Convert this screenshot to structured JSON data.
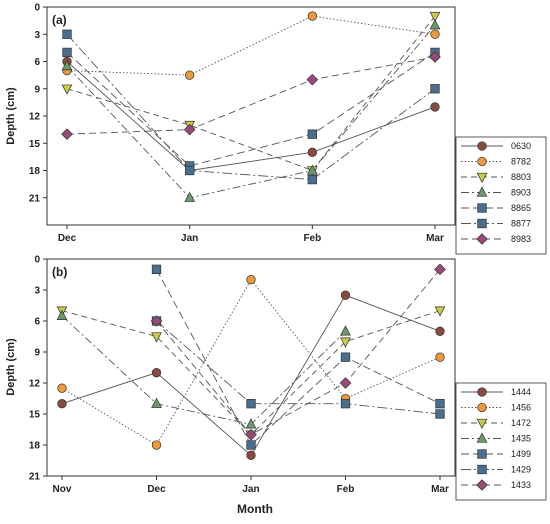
{
  "shared_xlabel": "Month",
  "marker_colors": {
    "circle_dark": "#8a4a3e",
    "circle_orange": "#ee9a3a",
    "triangle_down": "#c8c84a",
    "triangle_up": "#6a9a6a",
    "square": "#4a6e8e",
    "diamond": "#9a4a7a"
  },
  "chart_data": [
    {
      "panel_label": "(a)",
      "type": "line",
      "ylabel": "Depth (cm)",
      "categories": [
        "Dec",
        "Jan",
        "Feb",
        "Mar"
      ],
      "y_ticks": [
        "0",
        "3",
        "6",
        "9",
        "12",
        "15",
        "18",
        "21"
      ],
      "ylim": [
        0,
        24
      ],
      "y_inverted": true,
      "legend_position": "right",
      "series": [
        {
          "name": "0630",
          "values": [
            6,
            18,
            16,
            11
          ],
          "marker": "circle",
          "color": "#8a4a3e",
          "dash": ""
        },
        {
          "name": "8782",
          "values": [
            7,
            7.5,
            1,
            3
          ],
          "marker": "circle",
          "color": "#ee9a3a",
          "dash": "1.5,2"
        },
        {
          "name": "8803",
          "values": [
            9,
            13,
            18,
            1
          ],
          "marker": "triangle-down",
          "color": "#c8c84a",
          "dash": "6,4"
        },
        {
          "name": "8903",
          "values": [
            6.5,
            21,
            18,
            2
          ],
          "marker": "triangle-up",
          "color": "#6a9a6a",
          "dash": "8,3,2,3"
        },
        {
          "name": "8865",
          "values": [
            5,
            17.5,
            14,
            5
          ],
          "marker": "square",
          "color": "#4a6e8e",
          "dash": "8,4"
        },
        {
          "name": "8877",
          "values": [
            3,
            18,
            19,
            9
          ],
          "marker": "square",
          "color": "#4a6e8e",
          "dash": "10,3,2,3"
        },
        {
          "name": "8983",
          "values": [
            14,
            13.5,
            8,
            5.5
          ],
          "marker": "diamond",
          "color": "#9a4a7a",
          "dash": "7,4"
        }
      ]
    },
    {
      "panel_label": "(b)",
      "type": "line",
      "ylabel": "Depth (cm)",
      "categories": [
        "Nov",
        "Dec",
        "Jan",
        "Feb",
        "Mar"
      ],
      "y_ticks": [
        "0",
        "3",
        "6",
        "9",
        "12",
        "15",
        "18",
        "21"
      ],
      "ylim": [
        0,
        21
      ],
      "y_inverted": true,
      "legend_position": "right",
      "series": [
        {
          "name": "1444",
          "values": [
            14,
            11,
            19,
            3.5,
            7
          ],
          "marker": "circle",
          "color": "#8a4a3e",
          "dash": ""
        },
        {
          "name": "1456",
          "values": [
            12.5,
            18,
            2,
            13.5,
            9.5
          ],
          "marker": "circle",
          "color": "#ee9a3a",
          "dash": "1.5,2"
        },
        {
          "name": "1472",
          "values": [
            5,
            7.5,
            17,
            8,
            5
          ],
          "marker": "triangle-down",
          "color": "#c8c84a",
          "dash": "6,4"
        },
        {
          "name": "1435",
          "values": [
            5.5,
            14,
            16,
            7,
            null
          ],
          "marker": "triangle-up",
          "color": "#6a9a6a",
          "dash": "8,3,2,3"
        },
        {
          "name": "1499",
          "values": [
            null,
            1,
            18,
            9.5,
            14
          ],
          "marker": "square",
          "color": "#4a6e8e",
          "dash": "8,4"
        },
        {
          "name": "1429",
          "values": [
            null,
            6,
            14,
            14,
            15
          ],
          "marker": "square",
          "color": "#4a6e8e",
          "dash": "10,3,2,3"
        },
        {
          "name": "1433",
          "values": [
            null,
            6,
            17,
            12,
            1
          ],
          "marker": "diamond",
          "color": "#9a4a7a",
          "dash": "7,4"
        }
      ]
    }
  ]
}
